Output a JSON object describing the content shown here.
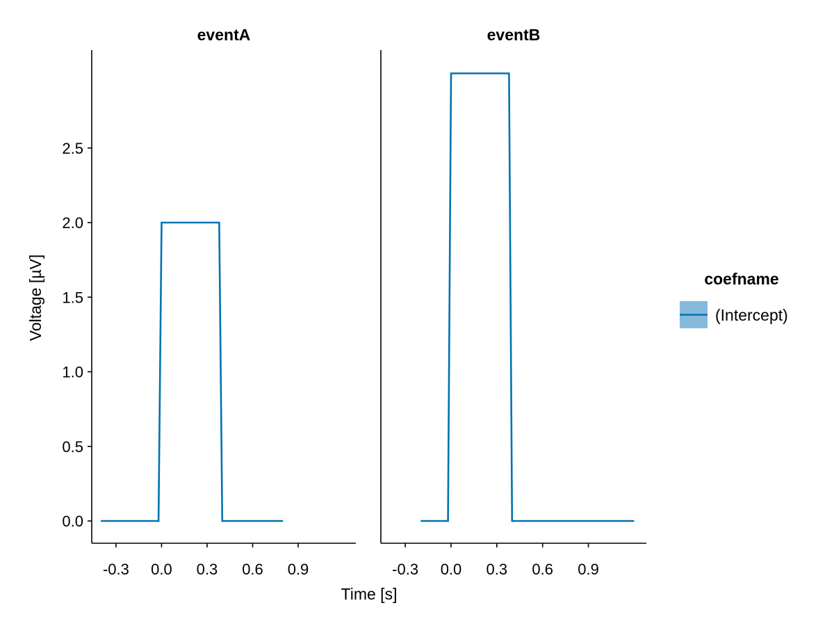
{
  "chart_data": {
    "type": "line",
    "facet_by": "event",
    "xlabel": "Time [s]",
    "ylabel": "Voltage [µV]",
    "legend": {
      "title": "coefname",
      "placement": "right",
      "entries": [
        {
          "label": "(Intercept)",
          "color": "#0072B2",
          "band_color": "#86BADB"
        }
      ]
    },
    "x_ticks": [
      -0.3,
      0.0,
      0.3,
      0.6,
      0.9
    ],
    "x_tick_labels": [
      "-0.3",
      "0.0",
      "0.3",
      "0.6",
      "0.9"
    ],
    "xlim": [
      -0.46,
      1.28
    ],
    "y_ticks": [
      0.0,
      0.5,
      1.0,
      1.5,
      2.0,
      2.5
    ],
    "y_tick_labels": [
      "0.0",
      "0.5",
      "1.0",
      "1.5",
      "2.0",
      "2.5"
    ],
    "ylim": [
      -0.15,
      3.3
    ],
    "grid": false,
    "panels": [
      {
        "title": "eventA",
        "series": [
          {
            "name": "(Intercept)",
            "color": "#0072B2",
            "x": [
              -0.4,
              -0.02,
              0.0,
              0.38,
              0.4,
              0.8
            ],
            "y": [
              0.0,
              0.0,
              2.0,
              2.0,
              0.0,
              0.0
            ]
          }
        ]
      },
      {
        "title": "eventB",
        "series": [
          {
            "name": "(Intercept)",
            "color": "#0072B2",
            "x": [
              -0.2,
              -0.02,
              0.0,
              0.38,
              0.4,
              1.2
            ],
            "y": [
              0.0,
              0.0,
              3.0,
              3.0,
              0.0,
              0.0
            ]
          }
        ]
      }
    ]
  }
}
